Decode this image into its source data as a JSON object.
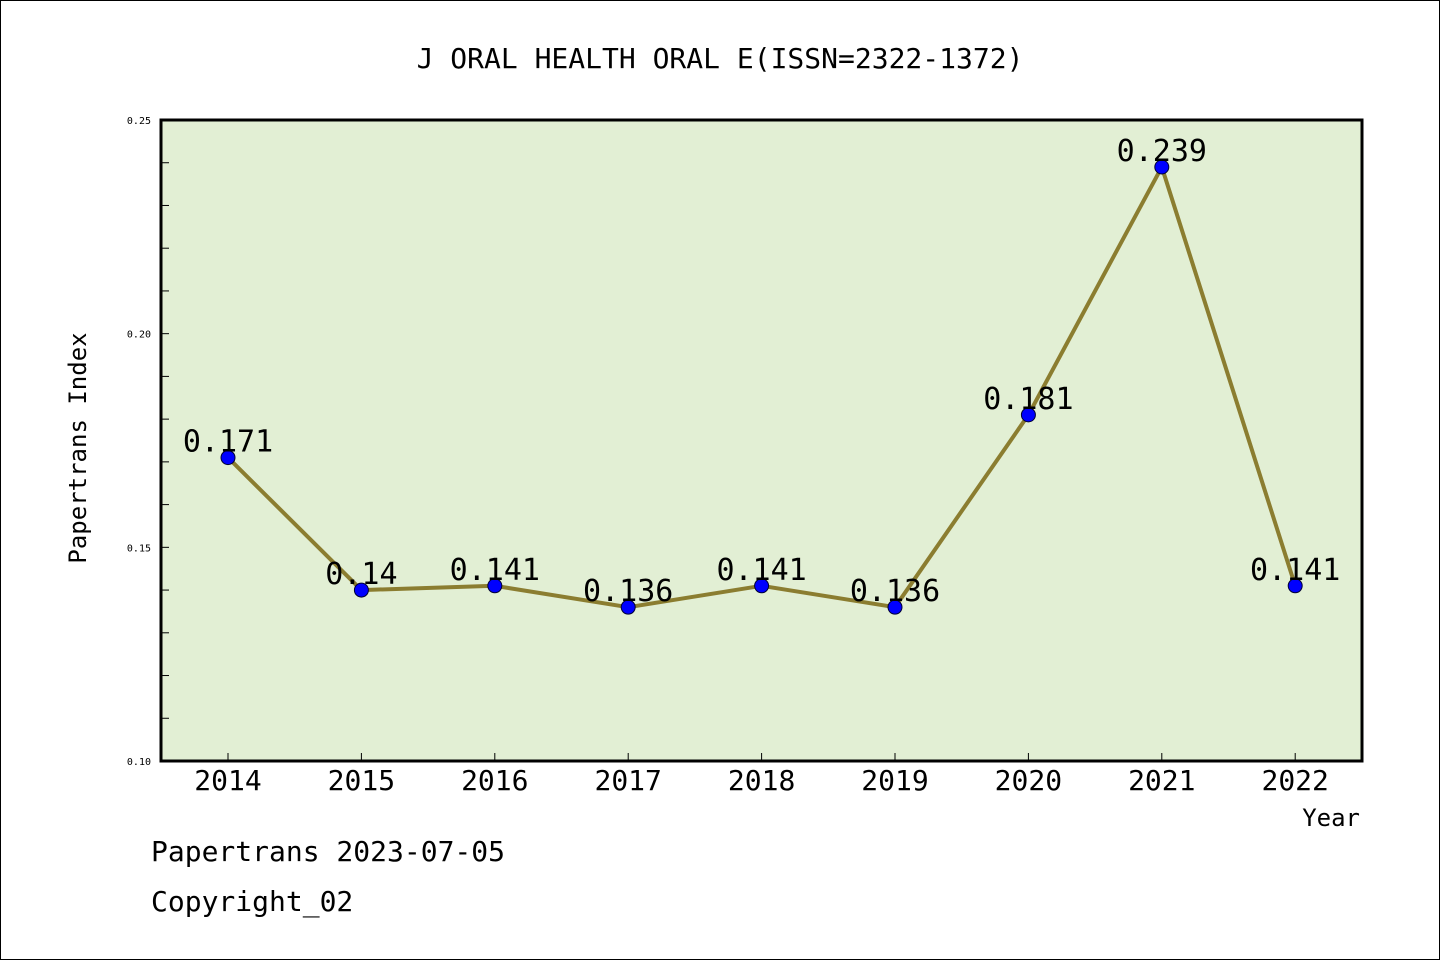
{
  "chart_data": {
    "type": "line",
    "title": "J ORAL HEALTH ORAL E(ISSN=2322-1372)",
    "xlabel": "Year",
    "ylabel": "Papertrans Index",
    "categories": [
      "2014",
      "2015",
      "2016",
      "2017",
      "2018",
      "2019",
      "2020",
      "2021",
      "2022"
    ],
    "series": [
      {
        "values": [
          0.171,
          0.14,
          0.141,
          0.136,
          0.141,
          0.136,
          0.181,
          0.239,
          0.141
        ],
        "labels": [
          "0.171",
          "0.14",
          "0.141",
          "0.136",
          "0.141",
          "0.136",
          "0.181",
          "0.239",
          "0.141"
        ]
      }
    ],
    "ylim": [
      0.1,
      0.25
    ],
    "yticks": [
      "0.10",
      "0.15",
      "0.20",
      "0.25"
    ],
    "grid": false,
    "legend": "none",
    "colors": {
      "plot_background": "#e2efd4",
      "line": "#8b7d30",
      "marker": "#0000ff",
      "axis": "#000000"
    }
  },
  "footer": {
    "line1": "Papertrans 2023-07-05",
    "line2": "Copyright_02"
  }
}
